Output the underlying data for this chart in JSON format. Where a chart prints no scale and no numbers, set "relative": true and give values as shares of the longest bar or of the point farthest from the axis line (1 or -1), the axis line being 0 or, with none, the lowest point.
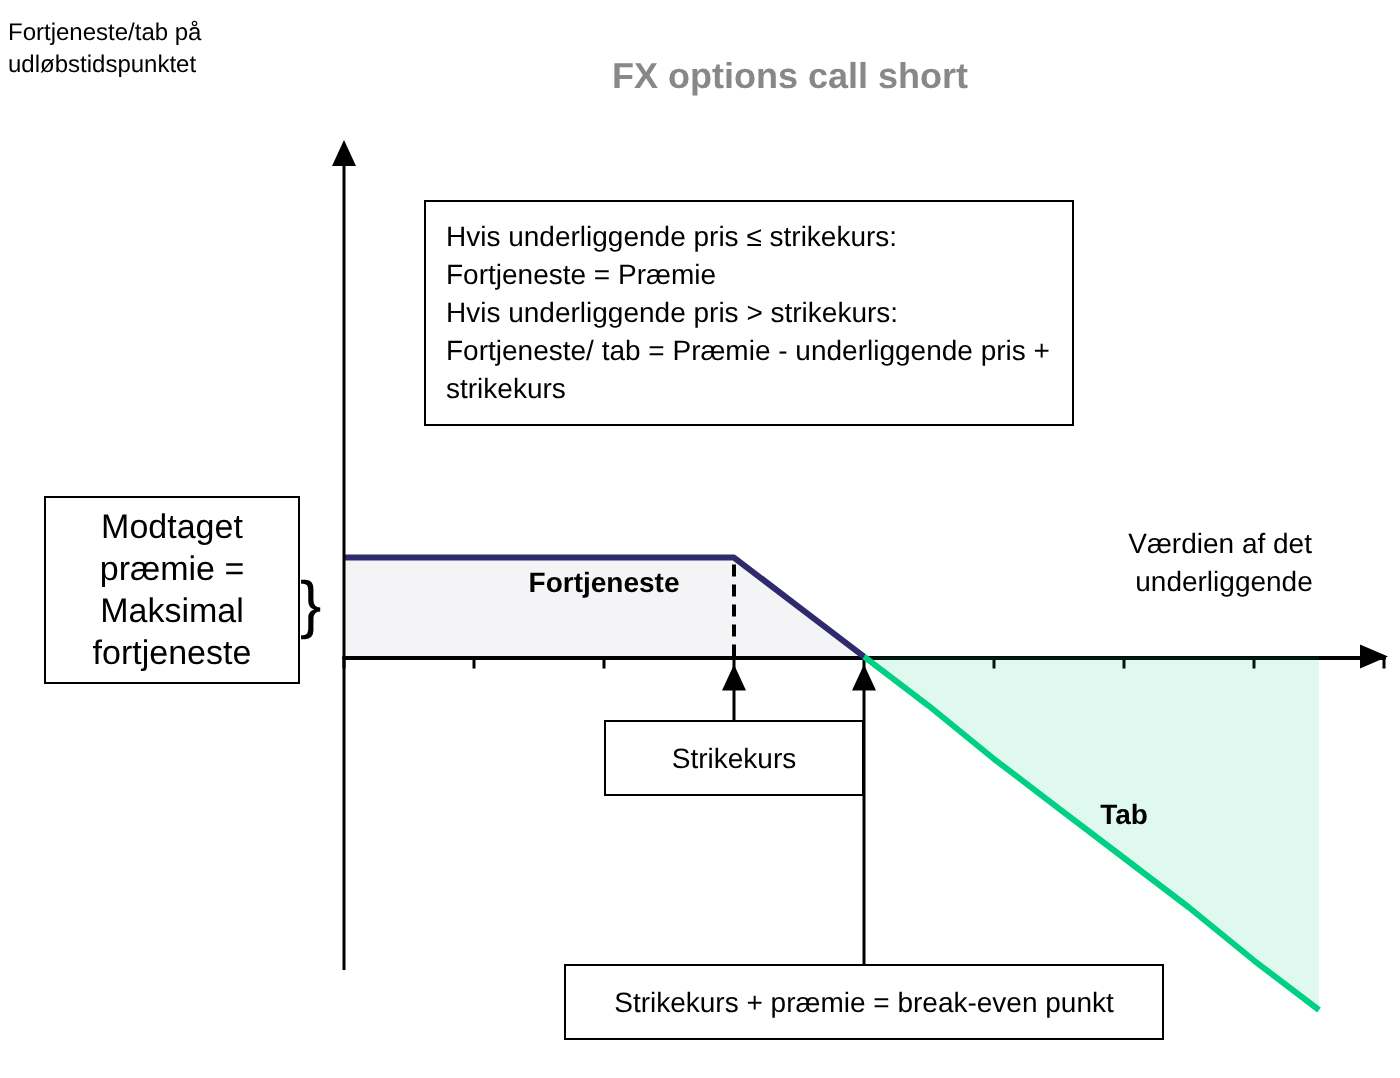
{
  "chart_data": {
    "type": "area",
    "title": "FX options call short",
    "xlabel": "Værdien af det underliggende",
    "relative": true,
    "categories": [
      null,
      null,
      null,
      null,
      null,
      null,
      null,
      null,
      null,
      null,
      null,
      null,
      null,
      null,
      null,
      null,
      null
    ],
    "series": [
      {
        "name": "Fortjeneste",
        "color": "#2e2a6b",
        "values": [
          0.28,
          0.28,
          0.28,
          0.28,
          0.28,
          0.28,
          0.28,
          0.14,
          0,
          null,
          null,
          null,
          null,
          null,
          null,
          null,
          null
        ]
      },
      {
        "name": "Tab",
        "color": "#00d084",
        "values": [
          null,
          null,
          null,
          null,
          null,
          null,
          null,
          null,
          0,
          -0.14,
          -0.29,
          -0.43,
          -0.57,
          -0.71,
          -0.86,
          -1,
          null
        ]
      }
    ],
    "annotations": [
      "Hvis underliggende pris ≤ strikekurs:\nFortjeneste = Præmie\nHvis underliggende pris > strikekurs:\nFortjeneste/ tab = Præmie - underliggende pris + strikekurs",
      "Modtaget præmie = Maksimal fortjeneste",
      "}",
      "Strikekurs",
      "Strikekurs + præmie = break-even punkt",
      "Fortjeneste/tab på udløbstidspunktet"
    ],
    "legend": false
  }
}
